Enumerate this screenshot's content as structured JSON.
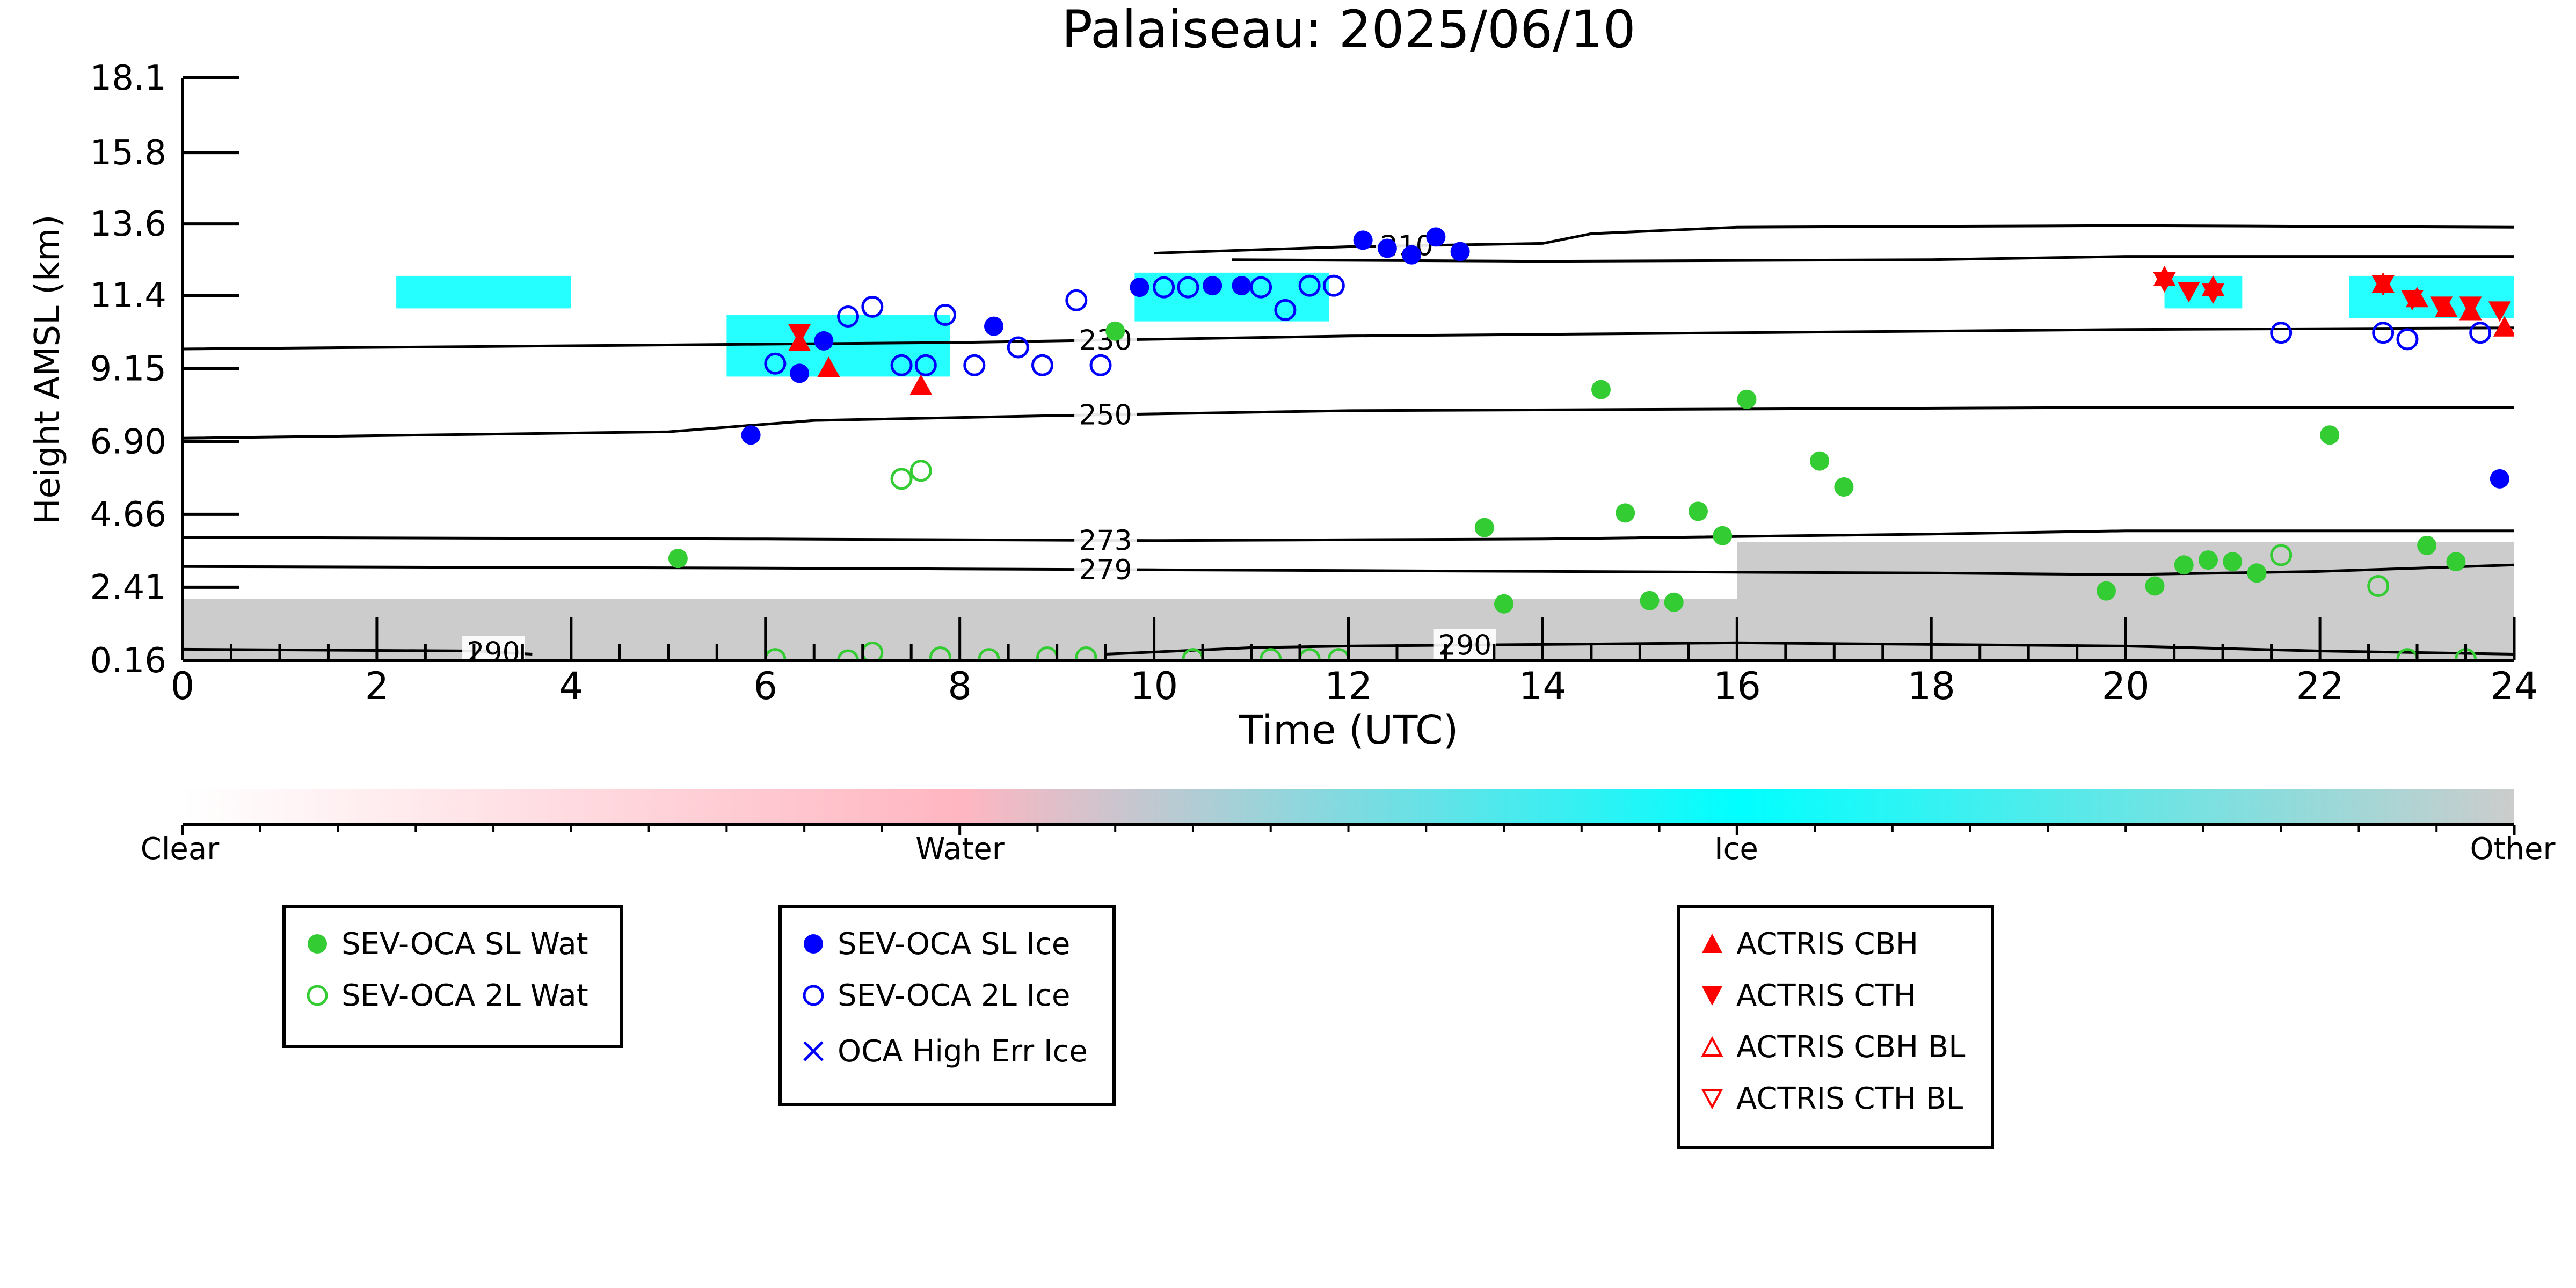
{
  "chart_data": {
    "type": "scatter",
    "title": "Palaiseau: 2025/06/10",
    "xlabel": "Time (UTC)",
    "ylabel": "Height AMSL (km)",
    "xlim": [
      0,
      24
    ],
    "ylim": [
      0.16,
      18.1
    ],
    "x_ticks": [
      0,
      2,
      4,
      6,
      8,
      10,
      12,
      14,
      16,
      18,
      20,
      22,
      24
    ],
    "y_ticks": [
      "0.16",
      "2.41",
      "4.66",
      "6.90",
      "9.15",
      "11.4",
      "13.6",
      "15.8",
      "18.1"
    ],
    "temperature_contours": [
      {
        "label": "230",
        "label_x": 9.5,
        "points": [
          [
            0,
            9.75
          ],
          [
            4,
            9.85
          ],
          [
            8,
            9.95
          ],
          [
            10,
            10.05
          ],
          [
            12,
            10.15
          ],
          [
            16,
            10.25
          ],
          [
            20,
            10.35
          ],
          [
            24,
            10.4
          ]
        ]
      },
      {
        "label": "250",
        "label_x": 9.5,
        "points": [
          [
            0,
            7.0
          ],
          [
            5,
            7.2
          ],
          [
            6.5,
            7.55
          ],
          [
            9,
            7.7
          ],
          [
            12,
            7.85
          ],
          [
            16,
            7.9
          ],
          [
            20,
            7.95
          ],
          [
            24,
            7.95
          ]
        ]
      },
      {
        "label": "273",
        "label_x": 9.5,
        "points": [
          [
            0,
            3.95
          ],
          [
            6,
            3.9
          ],
          [
            10,
            3.85
          ],
          [
            14,
            3.9
          ],
          [
            18,
            4.05
          ],
          [
            20,
            4.15
          ],
          [
            24,
            4.15
          ]
        ]
      },
      {
        "label": "279",
        "label_x": 9.5,
        "points": [
          [
            0,
            3.05
          ],
          [
            6,
            3.0
          ],
          [
            10,
            2.95
          ],
          [
            14,
            2.9
          ],
          [
            18,
            2.85
          ],
          [
            20,
            2.8
          ],
          [
            22,
            2.9
          ],
          [
            24,
            3.1
          ]
        ]
      },
      {
        "label": "290",
        "label_x": 3.2,
        "points": [
          [
            0,
            0.5
          ],
          [
            3,
            0.45
          ],
          [
            3.6,
            0.35
          ]
        ]
      },
      {
        "label": "290",
        "label_x": 13.2,
        "points": [
          [
            9.5,
            0.35
          ],
          [
            11,
            0.55
          ],
          [
            12,
            0.6
          ],
          [
            14,
            0.65
          ],
          [
            16,
            0.7
          ],
          [
            18,
            0.65
          ],
          [
            20,
            0.6
          ],
          [
            22,
            0.45
          ],
          [
            24,
            0.35
          ]
        ]
      },
      {
        "label": "210",
        "label_x": 12.6,
        "points": [
          [
            10,
            12.7
          ],
          [
            12,
            12.9
          ],
          [
            14,
            13.0
          ],
          [
            14.5,
            13.3
          ],
          [
            16,
            13.5
          ],
          [
            20,
            13.55
          ],
          [
            24,
            13.5
          ]
        ]
      },
      {
        "label": "",
        "label_x": null,
        "points": [
          [
            10.8,
            12.5
          ],
          [
            14,
            12.45
          ],
          [
            18,
            12.5
          ],
          [
            20,
            12.6
          ],
          [
            24,
            12.6
          ]
        ]
      }
    ],
    "cloudnet_regions": [
      {
        "class": "Ice",
        "x0": 2.2,
        "x1": 4.0,
        "y0": 11.0,
        "y1": 12.0
      },
      {
        "class": "Ice",
        "x0": 5.6,
        "x1": 7.9,
        "y0": 8.9,
        "y1": 10.8
      },
      {
        "class": "Ice",
        "x0": 9.8,
        "x1": 11.8,
        "y0": 10.6,
        "y1": 12.1
      },
      {
        "class": "Ice",
        "x0": 20.4,
        "x1": 21.2,
        "y0": 11.0,
        "y1": 12.0
      },
      {
        "class": "Ice",
        "x0": 22.3,
        "x1": 24.0,
        "y0": 10.7,
        "y1": 12.0
      },
      {
        "class": "Other",
        "x0": 0.0,
        "x1": 24.0,
        "y0": 0.16,
        "y1": 2.05
      },
      {
        "class": "Other",
        "x0": 16.0,
        "x1": 24.0,
        "y0": 2.05,
        "y1": 3.8
      }
    ],
    "series": [
      {
        "name": "SEV-OCA SL Wat",
        "marker": "circle-filled",
        "color": "#33cc33",
        "points": [
          [
            5.1,
            3.3
          ],
          [
            9.6,
            10.3
          ],
          [
            13.4,
            4.25
          ],
          [
            13.6,
            1.9
          ],
          [
            14.6,
            8.5
          ],
          [
            14.85,
            4.7
          ],
          [
            15.1,
            2.0
          ],
          [
            15.35,
            1.95
          ],
          [
            15.6,
            4.75
          ],
          [
            15.85,
            4.0
          ],
          [
            16.1,
            8.2
          ],
          [
            16.85,
            6.3
          ],
          [
            17.1,
            5.5
          ],
          [
            19.8,
            2.3
          ],
          [
            20.3,
            2.45
          ],
          [
            20.6,
            3.1
          ],
          [
            20.85,
            3.25
          ],
          [
            21.1,
            3.2
          ],
          [
            21.35,
            2.85
          ],
          [
            22.1,
            7.1
          ],
          [
            23.1,
            3.7
          ],
          [
            23.4,
            3.2
          ]
        ]
      },
      {
        "name": "SEV-OCA 2L Wat",
        "marker": "circle-open",
        "color": "#33cc33",
        "points": [
          [
            6.1,
            0.2
          ],
          [
            6.85,
            0.16
          ],
          [
            7.1,
            0.4
          ],
          [
            7.4,
            5.75
          ],
          [
            7.6,
            6.0
          ],
          [
            7.8,
            0.25
          ],
          [
            8.3,
            0.2
          ],
          [
            8.9,
            0.25
          ],
          [
            9.3,
            0.25
          ],
          [
            10.4,
            0.2
          ],
          [
            11.2,
            0.2
          ],
          [
            11.6,
            0.2
          ],
          [
            11.9,
            0.2
          ],
          [
            21.6,
            3.4
          ],
          [
            22.6,
            2.45
          ],
          [
            22.9,
            0.2
          ],
          [
            23.5,
            0.2
          ]
        ]
      },
      {
        "name": "SEV-OCA SL Ice",
        "marker": "circle-filled",
        "color": "#0000ff",
        "points": [
          [
            5.85,
            7.1
          ],
          [
            6.35,
            9.0
          ],
          [
            6.6,
            10.0
          ],
          [
            8.35,
            10.45
          ],
          [
            9.85,
            11.65
          ],
          [
            10.6,
            11.7
          ],
          [
            10.9,
            11.7
          ],
          [
            12.15,
            13.1
          ],
          [
            12.4,
            12.85
          ],
          [
            12.65,
            12.65
          ],
          [
            12.9,
            13.2
          ],
          [
            13.15,
            12.75
          ],
          [
            23.85,
            5.75
          ]
        ]
      },
      {
        "name": "SEV-OCA 2L Ice",
        "marker": "circle-open",
        "color": "#0000ff",
        "points": [
          [
            6.1,
            9.3
          ],
          [
            6.85,
            10.75
          ],
          [
            7.1,
            11.05
          ],
          [
            7.4,
            9.25
          ],
          [
            7.65,
            9.25
          ],
          [
            7.85,
            10.8
          ],
          [
            8.15,
            9.25
          ],
          [
            8.6,
            9.8
          ],
          [
            8.85,
            9.25
          ],
          [
            9.2,
            11.25
          ],
          [
            9.45,
            9.25
          ],
          [
            10.1,
            11.65
          ],
          [
            10.35,
            11.65
          ],
          [
            11.1,
            11.65
          ],
          [
            11.35,
            10.95
          ],
          [
            11.6,
            11.7
          ],
          [
            11.85,
            11.7
          ],
          [
            21.6,
            10.25
          ],
          [
            22.65,
            10.25
          ],
          [
            22.9,
            10.05
          ],
          [
            23.65,
            10.25
          ]
        ]
      },
      {
        "name": "OCA High Err Ice",
        "marker": "x",
        "color": "#0000ff",
        "points": []
      },
      {
        "name": "ACTRIS CBH",
        "marker": "triangle-up-filled",
        "color": "#ff0000",
        "points": [
          [
            6.35,
            9.95
          ],
          [
            6.65,
            9.15
          ],
          [
            7.6,
            8.6
          ],
          [
            20.4,
            11.95
          ],
          [
            20.9,
            11.65
          ],
          [
            22.65,
            11.75
          ],
          [
            23.0,
            11.3
          ],
          [
            23.3,
            11.0
          ],
          [
            23.55,
            10.9
          ],
          [
            23.9,
            10.4
          ]
        ]
      },
      {
        "name": "ACTRIS CTH",
        "marker": "triangle-down-filled",
        "color": "#ff0000",
        "points": [
          [
            6.35,
            10.25
          ],
          [
            20.4,
            11.85
          ],
          [
            20.65,
            11.55
          ],
          [
            20.9,
            11.5
          ],
          [
            22.65,
            11.75
          ],
          [
            22.95,
            11.3
          ],
          [
            23.25,
            11.1
          ],
          [
            23.55,
            11.1
          ],
          [
            23.85,
            10.95
          ]
        ]
      },
      {
        "name": "ACTRIS CBH BL",
        "marker": "triangle-up-open",
        "color": "#ff0000",
        "points": []
      },
      {
        "name": "ACTRIS CTH BL",
        "marker": "triangle-down-open",
        "color": "#ff0000",
        "points": []
      }
    ],
    "colorbar": {
      "labels": [
        "Clear",
        "Water",
        "Ice",
        "Other"
      ],
      "colors": [
        "#ffffff",
        "#ffb6c1",
        "#00ffff",
        "#cccccc"
      ]
    },
    "legend_placement": "bottom"
  },
  "legends": {
    "wat": [
      {
        "label": "SEV-OCA SL Wat",
        "marker": "circle-filled",
        "color": "#33cc33"
      },
      {
        "label": "SEV-OCA 2L Wat",
        "marker": "circle-open",
        "color": "#33cc33"
      }
    ],
    "ice": [
      {
        "label": "SEV-OCA SL Ice",
        "marker": "circle-filled",
        "color": "#0000ff"
      },
      {
        "label": "SEV-OCA 2L Ice",
        "marker": "circle-open",
        "color": "#0000ff"
      },
      {
        "label": "OCA High Err Ice",
        "marker": "x",
        "color": "#0000ff"
      }
    ],
    "actris": [
      {
        "label": "ACTRIS CBH",
        "marker": "triangle-up-filled",
        "color": "#ff0000"
      },
      {
        "label": "ACTRIS CTH",
        "marker": "triangle-down-filled",
        "color": "#ff0000"
      },
      {
        "label": "ACTRIS CBH BL",
        "marker": "triangle-up-open",
        "color": "#ff0000"
      },
      {
        "label": "ACTRIS CTH BL",
        "marker": "triangle-down-open",
        "color": "#ff0000"
      }
    ]
  }
}
